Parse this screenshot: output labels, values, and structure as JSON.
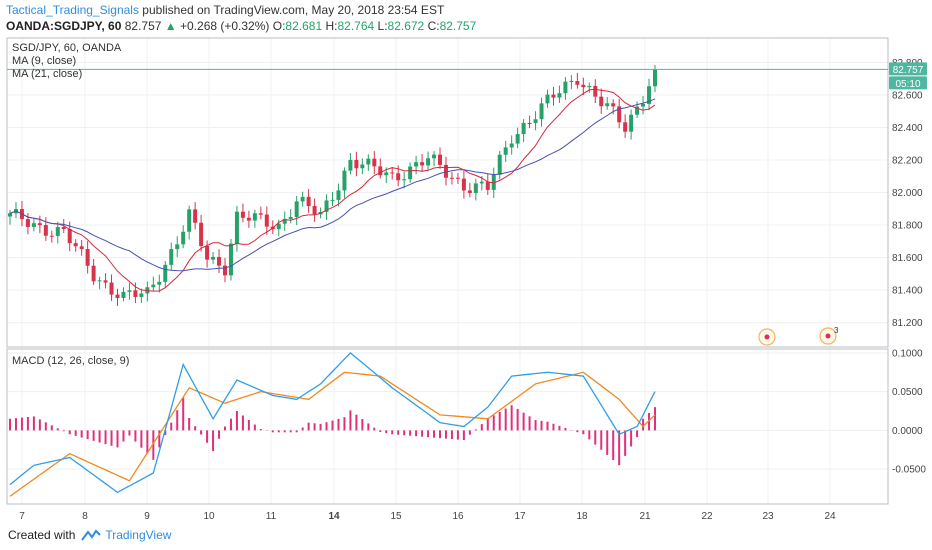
{
  "header": {
    "author": "Tactical_Trading_Signals",
    "published_text": " published on TradingView.com, May 20, 2018 23:54 EST",
    "symbol": "OANDA:SGDJPY, 60",
    "last_price": "82.757",
    "change": "+0.268 (+0.32%)",
    "open_label": "O:",
    "open_value": "82.681",
    "high_label": "H:",
    "high_value": "82.764",
    "low_label": "L:",
    "low_value": "82.672",
    "close_label": "C:",
    "close_value": "82.757"
  },
  "main_pane": {
    "legend": [
      "SGD/JPY, 60, OANDA",
      "MA (9, close)",
      "MA (21, close)"
    ],
    "price_badge": "82.757",
    "countdown": "05:10",
    "event_badge_count": "3"
  },
  "macd_pane": {
    "legend": "MACD (12, 26, close, 9)"
  },
  "footer": {
    "created_with": "Created with",
    "brand": "TradingView"
  },
  "colors": {
    "up_candle": "#26a269",
    "down_candle": "#d8334a",
    "ma9": "#d7263d",
    "ma21": "#4a4fb0",
    "macd_line": "#2f9ee8",
    "signal_line": "#f08a24",
    "histogram": "#e0307a",
    "price_badge": "#4fb6a0",
    "grid": "#eef0f3"
  },
  "chart_data": [
    {
      "type": "candlestick",
      "title": "SGD/JPY, 60, OANDA",
      "y_ticks": [
        81.2,
        81.4,
        81.6,
        81.8,
        82.0,
        82.2,
        82.4,
        82.6,
        82.8
      ],
      "y_tick_labels": [
        "81.200",
        "81.400",
        "81.600",
        "81.800",
        "82.000",
        "82.200",
        "82.400",
        "82.600",
        "82.800"
      ],
      "ylim": [
        81.05,
        82.95
      ],
      "x_tick_labels": [
        "7",
        "8",
        "9",
        "10",
        "11",
        "14",
        "15",
        "16",
        "17",
        "18",
        "21",
        "22",
        "23",
        "24"
      ],
      "last_price": 82.757,
      "series": [
        {
          "name": "SGD/JPY",
          "key_points": [
            [
              0,
              81.85
            ],
            [
              9,
              81.75
            ],
            [
              14,
              81.5
            ],
            [
              19,
              81.35
            ],
            [
              23,
              81.38
            ],
            [
              28,
              81.7
            ],
            [
              30,
              81.85
            ],
            [
              33,
              81.6
            ],
            [
              36,
              81.55
            ],
            [
              38,
              81.85
            ],
            [
              45,
              81.8
            ],
            [
              48,
              81.95
            ],
            [
              52,
              81.85
            ],
            [
              57,
              82.2
            ],
            [
              60,
              82.15
            ],
            [
              64,
              82.1
            ],
            [
              70,
              82.2
            ],
            [
              76,
              82.05
            ],
            [
              80,
              82.02
            ],
            [
              84,
              82.35
            ],
            [
              90,
              82.55
            ],
            [
              95,
              82.72
            ],
            [
              99,
              82.55
            ],
            [
              103,
              82.4
            ],
            [
              106,
              82.6
            ],
            [
              108,
              82.757
            ]
          ]
        },
        {
          "name": "MA (9, close)"
        },
        {
          "name": "MA (21, close)"
        }
      ]
    },
    {
      "type": "line",
      "title": "MACD (12, 26, close, 9)",
      "y_ticks": [
        -0.05,
        0,
        0.05,
        0.1
      ],
      "y_tick_labels": [
        "-0.0500",
        "0.0000",
        "0.0500",
        "0.1000"
      ],
      "ylim": [
        -0.095,
        0.105
      ],
      "macd_points": [
        [
          0,
          -0.07
        ],
        [
          4,
          -0.045
        ],
        [
          10,
          -0.035
        ],
        [
          18,
          -0.08
        ],
        [
          24,
          -0.055
        ],
        [
          29,
          0.085
        ],
        [
          34,
          0.015
        ],
        [
          38,
          0.065
        ],
        [
          44,
          0.045
        ],
        [
          48,
          0.04
        ],
        [
          52,
          0.06
        ],
        [
          57,
          0.1
        ],
        [
          64,
          0.055
        ],
        [
          72,
          0.01
        ],
        [
          76,
          0.005
        ],
        [
          80,
          0.03
        ],
        [
          84,
          0.07
        ],
        [
          90,
          0.075
        ],
        [
          96,
          0.07
        ],
        [
          102,
          -0.005
        ],
        [
          105,
          0.005
        ],
        [
          108,
          0.05
        ]
      ],
      "signal_points": [
        [
          0,
          -0.085
        ],
        [
          10,
          -0.03
        ],
        [
          20,
          -0.065
        ],
        [
          30,
          0.055
        ],
        [
          36,
          0.035
        ],
        [
          42,
          0.05
        ],
        [
          50,
          0.04
        ],
        [
          56,
          0.075
        ],
        [
          62,
          0.07
        ],
        [
          72,
          0.02
        ],
        [
          80,
          0.015
        ],
        [
          88,
          0.06
        ],
        [
          96,
          0.075
        ],
        [
          102,
          0.04
        ],
        [
          106,
          0.005
        ],
        [
          108,
          0.02
        ]
      ]
    }
  ]
}
